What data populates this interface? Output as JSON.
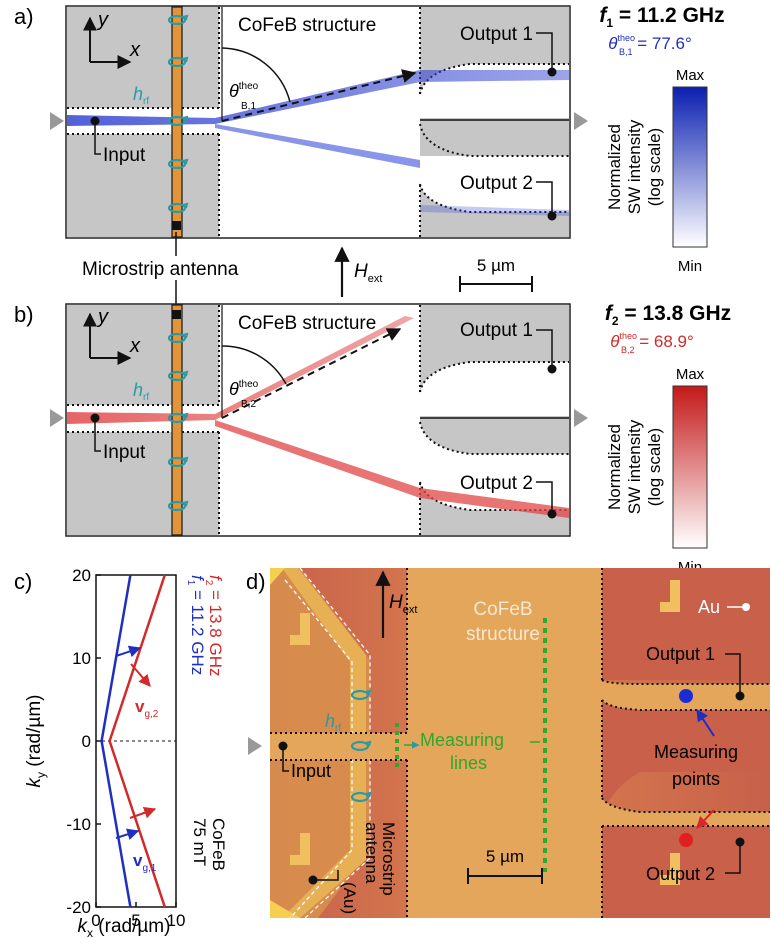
{
  "panel_a": {
    "label": "a)",
    "structure_label": "CoFeB structure",
    "axis_y": "y",
    "axis_x": "x",
    "h_rf": "h",
    "h_rf_sub": "rf",
    "theta": "θ",
    "theta_sup": "theo",
    "theta_sub": "B,1",
    "output1": "Output 1",
    "output2": "Output 2",
    "input": "Input",
    "freq_prefix": "f",
    "freq_sub": "1",
    "freq_value": " = 11.2 GHz",
    "angle_symbol": "θ",
    "angle_sup": "theo",
    "angle_sub": "B,1",
    "angle_value": " = 77.6°",
    "colorbar_max": "Max",
    "colorbar_min": "Min",
    "colorbar_title_1": "Normalized",
    "colorbar_title_2": "SW intensity",
    "colorbar_title_3": "(log scale)",
    "color": "#1f2fbf"
  },
  "middle": {
    "antenna": "Microstrip antenna",
    "field": "H",
    "field_sub": "ext",
    "scalebar": "5 µm"
  },
  "panel_b": {
    "label": "b)",
    "structure_label": "CoFeB structure",
    "axis_y": "y",
    "axis_x": "x",
    "h_rf": "h",
    "h_rf_sub": "rf",
    "theta": "θ",
    "theta_sup": "theo",
    "theta_sub": "B,2",
    "output1": "Output 1",
    "output2": "Output 2",
    "input": "Input",
    "freq_prefix": "f",
    "freq_sub": "2",
    "freq_value": " = 13.8 GHz",
    "angle_symbol": "θ",
    "angle_sup": "theo",
    "angle_sub": "B,2",
    "angle_value": " = 68.9°",
    "colorbar_max": "Max",
    "colorbar_min": "Min",
    "colorbar_title_1": "Normalized",
    "colorbar_title_2": "SW intensity",
    "colorbar_title_3": "(log scale)",
    "color": "#d12a2a"
  },
  "panel_c": {
    "label": "c)",
    "ylabel": "k",
    "ylabel_sub": "y",
    "ylabel_unit": " (rad/µm)",
    "xlabel": "k",
    "xlabel_sub": "x",
    "xlabel_unit": " (rad/µm)",
    "yticks": [
      "20",
      "10",
      "0",
      "-10",
      "-20"
    ],
    "xticks": [
      "0",
      "5",
      "10"
    ],
    "legend_f1": "f",
    "legend_f1_sub": "1",
    "legend_f1_value": " = 11.2 GHz",
    "legend_f2": "f",
    "legend_f2_sub": "2",
    "legend_f2_value": " = 13.8 GHz",
    "vg2": "v",
    "vg2_sub": "g,2",
    "vg1": "v",
    "vg1_sub": "g,1",
    "field_value": "75 mT",
    "material": "CoFeB"
  },
  "panel_d": {
    "label": "d)",
    "field": "H",
    "field_sub": "ext",
    "structure_line1": "CoFeB",
    "structure_line2": "structure",
    "au": "Au",
    "output1": "Output 1",
    "output2": "Output 2",
    "h_rf": "h",
    "h_rf_sub": "rf",
    "input": "Input",
    "measuring_lines_1": "Measuring",
    "measuring_lines_2": "lines",
    "measuring_points_1": "Measuring",
    "measuring_points_2": "points",
    "antenna_1": "Microstrip",
    "antenna_2": "antenna",
    "antenna_3": "(Au)",
    "scalebar": "5 µm"
  },
  "chart_data": {
    "type": "line",
    "xlabel": "kx (rad/µm)",
    "ylabel": "ky (rad/µm)",
    "xlim": [
      0,
      10
    ],
    "ylim": [
      -20,
      20
    ],
    "series": [
      {
        "name": "f1 = 11.2 GHz",
        "color": "#1f2fbf",
        "points": [
          [
            4.3,
            20
          ],
          [
            0.7,
            0
          ],
          [
            4.3,
            -20
          ]
        ]
      },
      {
        "name": "f2 = 13.8 GHz",
        "color": "#d12a2a",
        "points": [
          [
            8.6,
            20
          ],
          [
            1.7,
            0
          ],
          [
            8.6,
            -20
          ]
        ]
      }
    ]
  }
}
